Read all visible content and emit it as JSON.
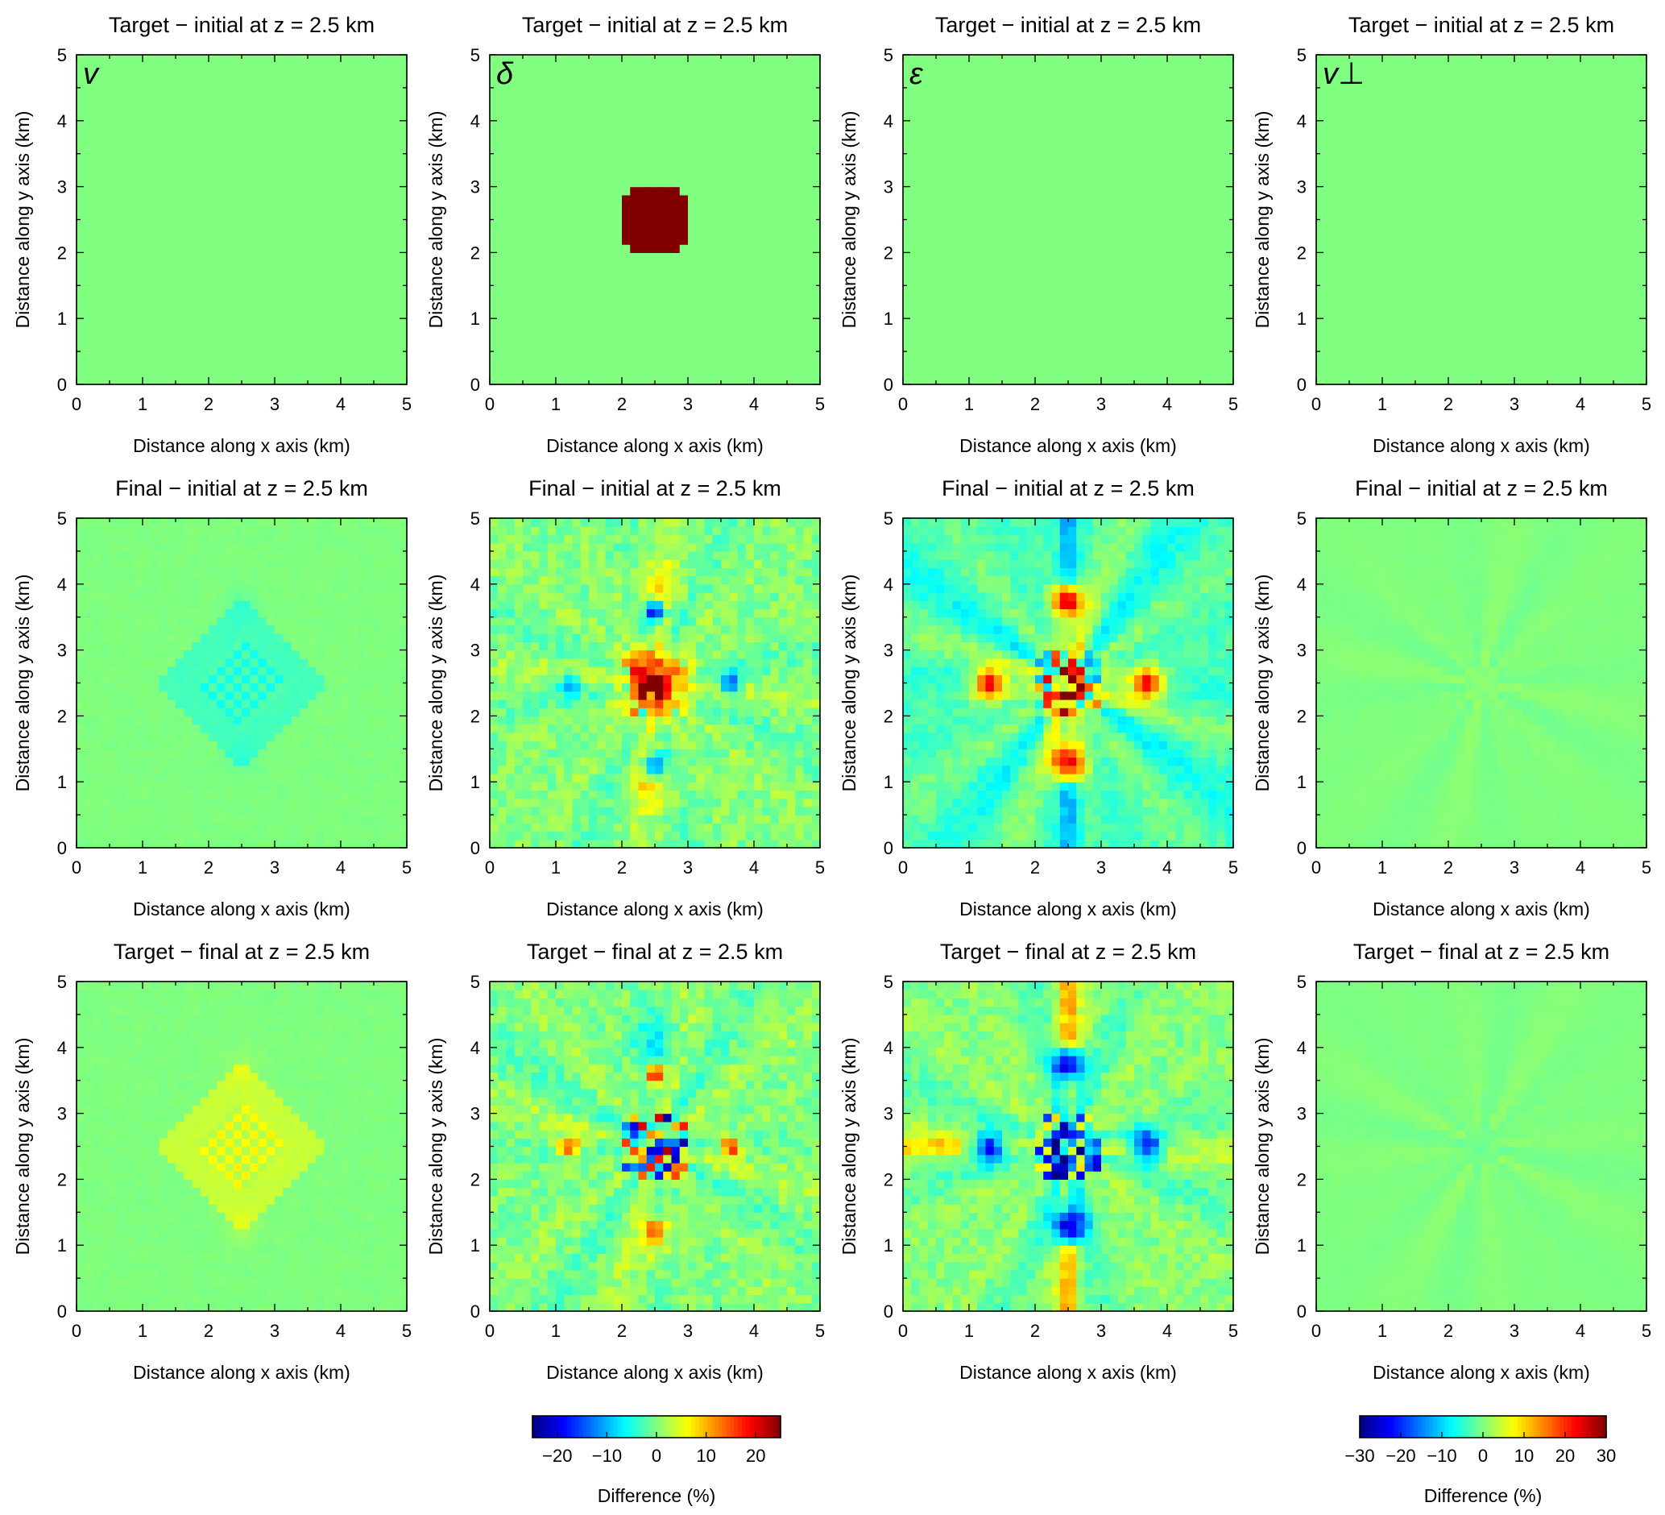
{
  "chart_data": {
    "type": "heatmap",
    "layout": "3 rows x 4 columns of map-view heatmap panels",
    "parameters": [
      "v",
      "δ",
      "ε",
      "v⊥"
    ],
    "row_titles": [
      "Target − initial at  z = 2.5 km",
      "Final − initial at  z = 2.5 km",
      "Target − final at  z = 2.5 km"
    ],
    "xlabel": "Distance along x axis (km)",
    "ylabel": "Distance along y axis (km)",
    "xlim": [
      0,
      5
    ],
    "ylim": [
      0,
      5
    ],
    "xticks": [
      "0",
      "1",
      "2",
      "3",
      "4",
      "5"
    ],
    "yticks": [
      "0",
      "1",
      "2",
      "3",
      "4",
      "5"
    ],
    "grid": false,
    "colormap": "jet",
    "colorbars": [
      {
        "label": "Difference (%)",
        "range": [
          -25,
          25
        ],
        "ticks": [
          "−20",
          "−10",
          "0",
          "10",
          "20"
        ],
        "tick_values": [
          -20,
          -10,
          0,
          10,
          20
        ],
        "applies_to_column": 2
      },
      {
        "label": "Difference (%)",
        "range": [
          -30,
          30
        ],
        "ticks": [
          "−30",
          "−20",
          "−10",
          "0",
          "10",
          "20",
          "30"
        ],
        "tick_values": [
          -30,
          -20,
          -10,
          0,
          10,
          20,
          30
        ],
        "applies_to_column": 4
      }
    ],
    "panels": [
      {
        "row": 1,
        "col": 1,
        "label": "v",
        "pattern": "uniform",
        "value": 0
      },
      {
        "row": 1,
        "col": 2,
        "label": "δ",
        "pattern": "disk",
        "center_km": [
          2.5,
          2.5
        ],
        "radius_km": 0.55,
        "value": 30
      },
      {
        "row": 1,
        "col": 3,
        "label": "ε",
        "pattern": "uniform",
        "value": 0
      },
      {
        "row": 1,
        "col": 4,
        "label": "v⊥",
        "pattern": "uniform",
        "value": 0
      },
      {
        "row": 2,
        "col": 1,
        "pattern": "diamond_checker",
        "amplitude": -5
      },
      {
        "row": 2,
        "col": 2,
        "pattern": "delta_recovery",
        "center_peak": 25,
        "lobe_values": -22
      },
      {
        "row": 2,
        "col": 3,
        "pattern": "epsilon_recovery",
        "lobe_peak": 25
      },
      {
        "row": 2,
        "col": 4,
        "pattern": "faint_star",
        "amplitude": 1.5
      },
      {
        "row": 3,
        "col": 1,
        "pattern": "diamond_checker",
        "amplitude": 6
      },
      {
        "row": 3,
        "col": 2,
        "pattern": "delta_residual",
        "spot_peak": 25
      },
      {
        "row": 3,
        "col": 3,
        "pattern": "epsilon_residual",
        "lobe_peak": -25
      },
      {
        "row": 3,
        "col": 4,
        "pattern": "faint_star",
        "amplitude": -1.5
      }
    ]
  }
}
